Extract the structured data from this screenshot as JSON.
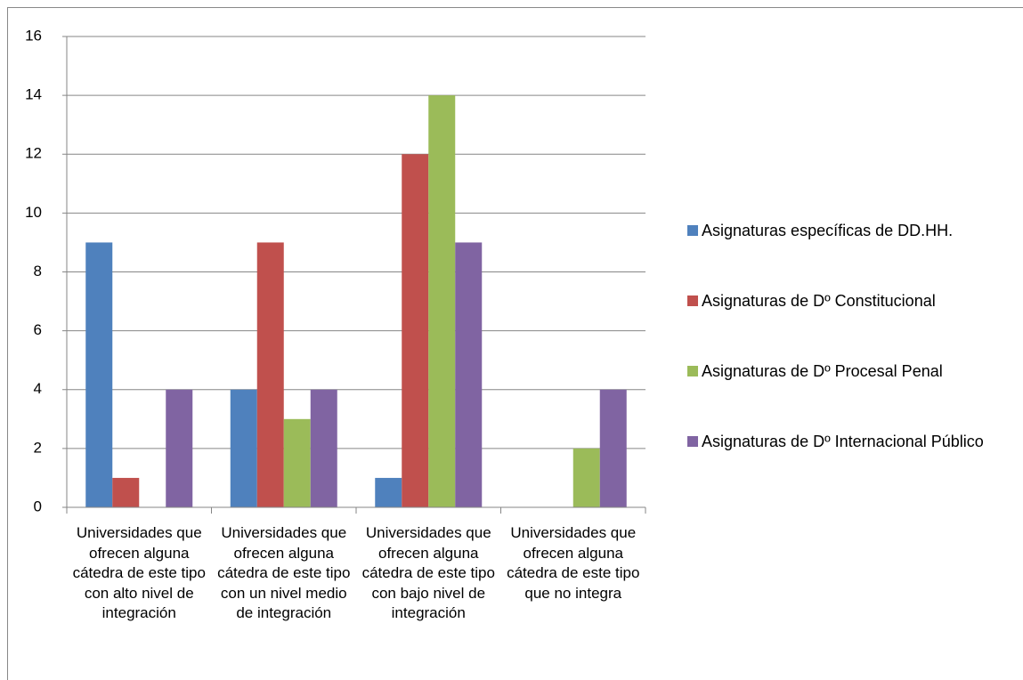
{
  "chart_data": {
    "type": "bar",
    "categories": [
      "Universidades que ofrecen alguna cátedra de este tipo con alto nivel de integración",
      "Universidades que ofrecen alguna cátedra de este tipo con un nivel medio de integración",
      "Universidades que ofrecen alguna cátedra de este tipo con bajo nivel de integración",
      "Universidades que ofrecen alguna cátedra de este tipo que no integra"
    ],
    "series": [
      {
        "name": "Asignaturas específicas de DD.HH.",
        "color": "#4f81bd",
        "values": [
          9,
          4,
          1,
          0
        ]
      },
      {
        "name": "Asignaturas de Dº Constitucional",
        "color": "#c0504d",
        "values": [
          1,
          9,
          12,
          0
        ]
      },
      {
        "name": "Asignaturas de Dº Procesal Penal",
        "color": "#9bbb59",
        "values": [
          0,
          3,
          14,
          2
        ]
      },
      {
        "name": "Asignaturas de Dº Internacional Público",
        "color": "#8064a2",
        "values": [
          4,
          4,
          9,
          4
        ]
      }
    ],
    "ylim": [
      0,
      16
    ],
    "yticks": [
      0,
      2,
      4,
      6,
      8,
      10,
      12,
      14,
      16
    ],
    "grid": true,
    "legend": "right"
  }
}
